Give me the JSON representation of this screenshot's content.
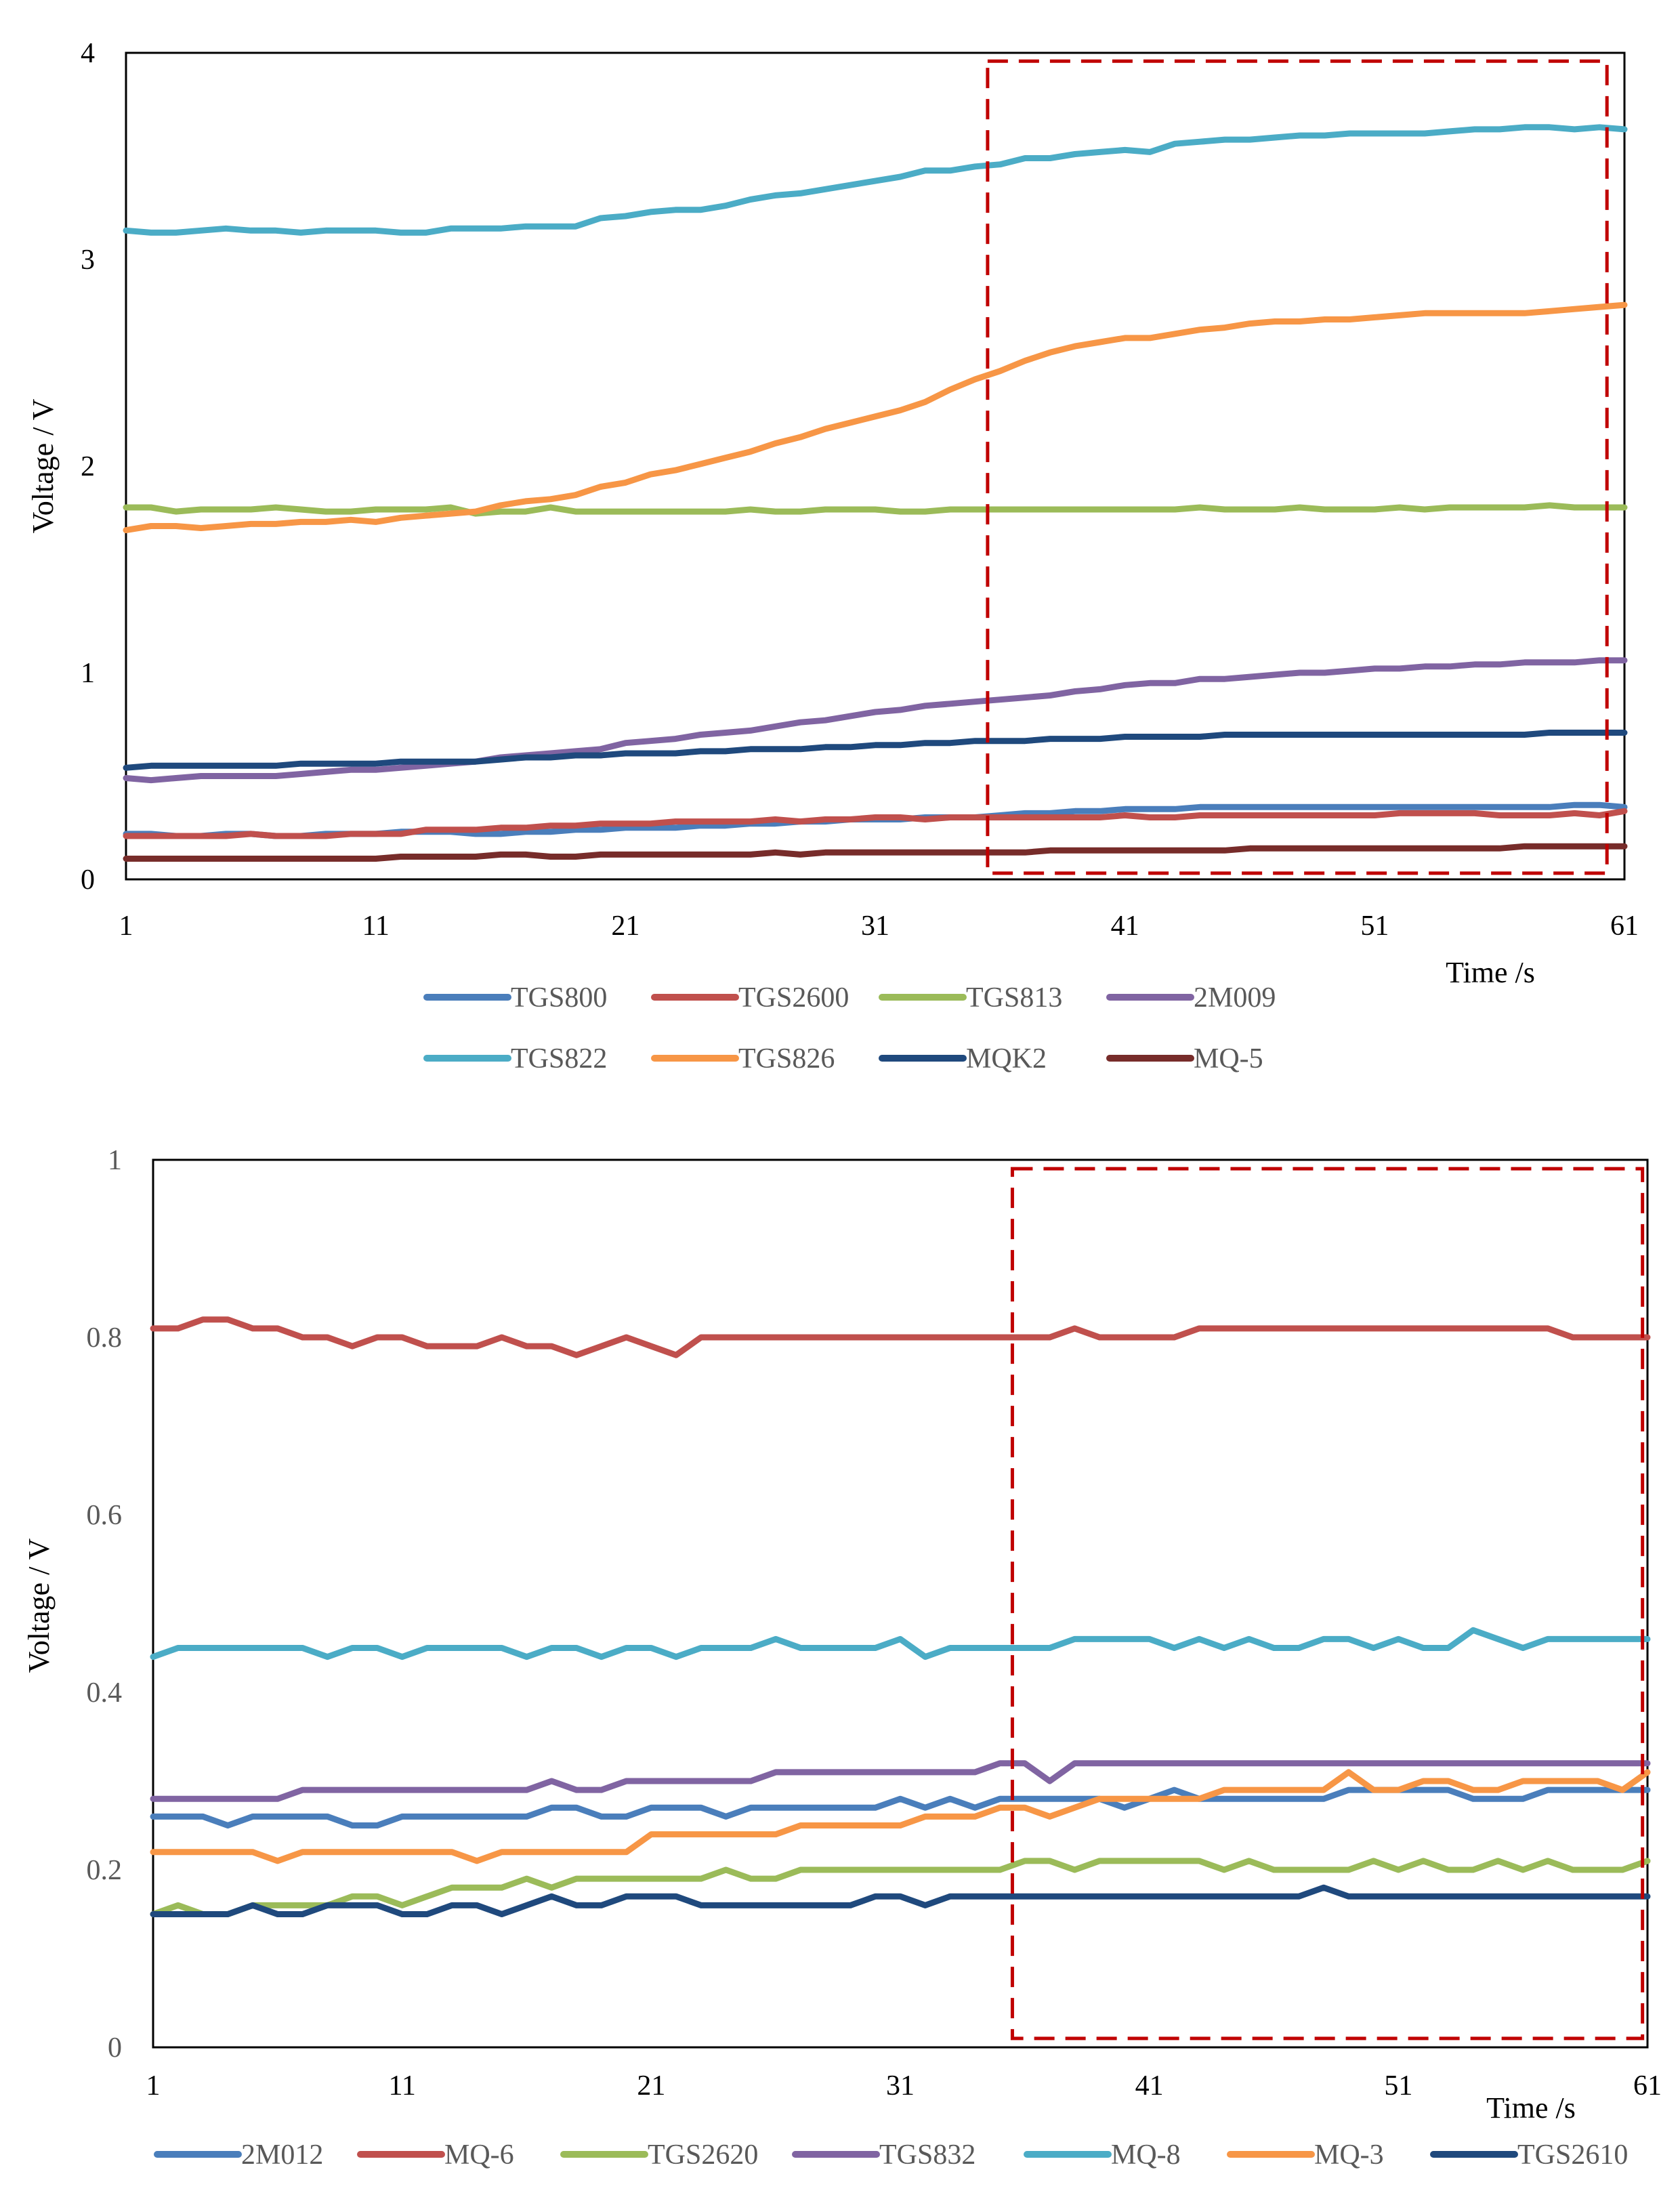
{
  "chart_data": [
    {
      "type": "line",
      "id": "chart-top",
      "title": "",
      "xlabel": "Time /s",
      "ylabel": "Voltage / V",
      "xlim": [
        1,
        61
      ],
      "ylim": [
        0,
        4
      ],
      "xticks": [
        1,
        11,
        21,
        31,
        41,
        51,
        61
      ],
      "xtick_labels": [
        "1",
        "11",
        "21",
        "31",
        "41",
        "51",
        "61"
      ],
      "yticks": [
        0,
        1,
        2,
        3,
        4
      ],
      "ytick_labels": [
        "0",
        "1",
        "2",
        "3",
        "4"
      ],
      "grid": false,
      "legend_position": "bottom",
      "legend_columns": 4,
      "highlight_region": {
        "x": [
          35.5,
          60.3
        ],
        "y": [
          0.03,
          3.96
        ],
        "color": "#c00000",
        "style": "dashed"
      },
      "series": [
        {
          "name": "TGS800",
          "color": "#4a7ebb",
          "values": [
            0.22,
            0.22,
            0.21,
            0.21,
            0.22,
            0.22,
            0.21,
            0.21,
            0.22,
            0.22,
            0.22,
            0.23,
            0.23,
            0.23,
            0.22,
            0.22,
            0.23,
            0.23,
            0.24,
            0.24,
            0.25,
            0.25,
            0.25,
            0.26,
            0.26,
            0.27,
            0.27,
            0.28,
            0.28,
            0.29,
            0.29,
            0.29,
            0.3,
            0.3,
            0.3,
            0.31,
            0.32,
            0.32,
            0.33,
            0.33,
            0.34,
            0.34,
            0.34,
            0.35,
            0.35,
            0.35,
            0.35,
            0.35,
            0.35,
            0.35,
            0.35,
            0.35,
            0.35,
            0.35,
            0.35,
            0.35,
            0.35,
            0.35,
            0.36,
            0.36,
            0.35
          ]
        },
        {
          "name": "TGS2600",
          "color": "#c0504d",
          "values": [
            0.21,
            0.21,
            0.21,
            0.21,
            0.21,
            0.22,
            0.21,
            0.21,
            0.21,
            0.22,
            0.22,
            0.22,
            0.24,
            0.24,
            0.24,
            0.25,
            0.25,
            0.26,
            0.26,
            0.27,
            0.27,
            0.27,
            0.28,
            0.28,
            0.28,
            0.28,
            0.29,
            0.28,
            0.29,
            0.29,
            0.3,
            0.3,
            0.29,
            0.3,
            0.3,
            0.3,
            0.3,
            0.3,
            0.3,
            0.3,
            0.31,
            0.3,
            0.3,
            0.31,
            0.31,
            0.31,
            0.31,
            0.31,
            0.31,
            0.31,
            0.31,
            0.32,
            0.32,
            0.32,
            0.32,
            0.31,
            0.31,
            0.31,
            0.32,
            0.31,
            0.33
          ]
        },
        {
          "name": "TGS813",
          "color": "#9bbb59",
          "values": [
            1.8,
            1.8,
            1.78,
            1.79,
            1.79,
            1.79,
            1.8,
            1.79,
            1.78,
            1.78,
            1.79,
            1.79,
            1.79,
            1.8,
            1.77,
            1.78,
            1.78,
            1.8,
            1.78,
            1.78,
            1.78,
            1.78,
            1.78,
            1.78,
            1.78,
            1.79,
            1.78,
            1.78,
            1.79,
            1.79,
            1.79,
            1.78,
            1.78,
            1.79,
            1.79,
            1.79,
            1.79,
            1.79,
            1.79,
            1.79,
            1.79,
            1.79,
            1.79,
            1.8,
            1.79,
            1.79,
            1.79,
            1.8,
            1.79,
            1.79,
            1.79,
            1.8,
            1.79,
            1.8,
            1.8,
            1.8,
            1.8,
            1.81,
            1.8,
            1.8,
            1.8
          ]
        },
        {
          "name": "2M009",
          "color": "#8064a2",
          "values": [
            0.49,
            0.48,
            0.49,
            0.5,
            0.5,
            0.5,
            0.5,
            0.51,
            0.52,
            0.53,
            0.53,
            0.54,
            0.55,
            0.56,
            0.57,
            0.59,
            0.6,
            0.61,
            0.62,
            0.63,
            0.66,
            0.67,
            0.68,
            0.7,
            0.71,
            0.72,
            0.74,
            0.76,
            0.77,
            0.79,
            0.81,
            0.82,
            0.84,
            0.85,
            0.86,
            0.87,
            0.88,
            0.89,
            0.91,
            0.92,
            0.94,
            0.95,
            0.95,
            0.97,
            0.97,
            0.98,
            0.99,
            1.0,
            1.0,
            1.01,
            1.02,
            1.02,
            1.03,
            1.03,
            1.04,
            1.04,
            1.05,
            1.05,
            1.05,
            1.06,
            1.06
          ]
        },
        {
          "name": "TGS822",
          "color": "#4bacc6",
          "values": [
            3.14,
            3.13,
            3.13,
            3.14,
            3.15,
            3.14,
            3.14,
            3.13,
            3.14,
            3.14,
            3.14,
            3.13,
            3.13,
            3.15,
            3.15,
            3.15,
            3.16,
            3.16,
            3.16,
            3.2,
            3.21,
            3.23,
            3.24,
            3.24,
            3.26,
            3.29,
            3.31,
            3.32,
            3.34,
            3.36,
            3.38,
            3.4,
            3.43,
            3.43,
            3.45,
            3.46,
            3.49,
            3.49,
            3.51,
            3.52,
            3.53,
            3.52,
            3.56,
            3.57,
            3.58,
            3.58,
            3.59,
            3.6,
            3.6,
            3.61,
            3.61,
            3.61,
            3.61,
            3.62,
            3.63,
            3.63,
            3.64,
            3.64,
            3.63,
            3.64,
            3.63
          ]
        },
        {
          "name": "TGS826",
          "color": "#f79646",
          "values": [
            1.69,
            1.71,
            1.71,
            1.7,
            1.71,
            1.72,
            1.72,
            1.73,
            1.73,
            1.74,
            1.73,
            1.75,
            1.76,
            1.77,
            1.78,
            1.81,
            1.83,
            1.84,
            1.86,
            1.9,
            1.92,
            1.96,
            1.98,
            2.01,
            2.04,
            2.07,
            2.11,
            2.14,
            2.18,
            2.21,
            2.24,
            2.27,
            2.31,
            2.37,
            2.42,
            2.46,
            2.51,
            2.55,
            2.58,
            2.6,
            2.62,
            2.62,
            2.64,
            2.66,
            2.67,
            2.69,
            2.7,
            2.7,
            2.71,
            2.71,
            2.72,
            2.73,
            2.74,
            2.74,
            2.74,
            2.74,
            2.74,
            2.75,
            2.76,
            2.77,
            2.78
          ]
        },
        {
          "name": "MQK2",
          "color": "#1f497d",
          "values": [
            0.54,
            0.55,
            0.55,
            0.55,
            0.55,
            0.55,
            0.55,
            0.56,
            0.56,
            0.56,
            0.56,
            0.57,
            0.57,
            0.57,
            0.57,
            0.58,
            0.59,
            0.59,
            0.6,
            0.6,
            0.61,
            0.61,
            0.61,
            0.62,
            0.62,
            0.63,
            0.63,
            0.63,
            0.64,
            0.64,
            0.65,
            0.65,
            0.66,
            0.66,
            0.67,
            0.67,
            0.67,
            0.68,
            0.68,
            0.68,
            0.69,
            0.69,
            0.69,
            0.69,
            0.7,
            0.7,
            0.7,
            0.7,
            0.7,
            0.7,
            0.7,
            0.7,
            0.7,
            0.7,
            0.7,
            0.7,
            0.7,
            0.71,
            0.71,
            0.71,
            0.71
          ]
        },
        {
          "name": "MQ-5",
          "color": "#772c2a",
          "values": [
            0.1,
            0.1,
            0.1,
            0.1,
            0.1,
            0.1,
            0.1,
            0.1,
            0.1,
            0.1,
            0.1,
            0.11,
            0.11,
            0.11,
            0.11,
            0.12,
            0.12,
            0.11,
            0.11,
            0.12,
            0.12,
            0.12,
            0.12,
            0.12,
            0.12,
            0.12,
            0.13,
            0.12,
            0.13,
            0.13,
            0.13,
            0.13,
            0.13,
            0.13,
            0.13,
            0.13,
            0.13,
            0.14,
            0.14,
            0.14,
            0.14,
            0.14,
            0.14,
            0.14,
            0.14,
            0.15,
            0.15,
            0.15,
            0.15,
            0.15,
            0.15,
            0.15,
            0.15,
            0.15,
            0.15,
            0.15,
            0.16,
            0.16,
            0.16,
            0.16,
            0.16
          ]
        }
      ]
    },
    {
      "type": "line",
      "id": "chart-bottom",
      "title": "",
      "xlabel": "Time /s",
      "ylabel": "Voltage / V",
      "xlim": [
        1,
        61
      ],
      "ylim": [
        0,
        1
      ],
      "xticks": [
        1,
        11,
        21,
        31,
        41,
        51,
        61
      ],
      "xtick_labels": [
        "1",
        "11",
        "21",
        "31",
        "41",
        "51",
        "61"
      ],
      "yticks": [
        0,
        0.2,
        0.4,
        0.6,
        0.8,
        1
      ],
      "ytick_labels": [
        "0",
        "0.2",
        "0.4",
        "0.6",
        "0.8",
        "1"
      ],
      "grid": false,
      "legend_position": "bottom",
      "legend_columns": 7,
      "highlight_region": {
        "x": [
          35.5,
          60.8
        ],
        "y": [
          0.01,
          0.99
        ],
        "color": "#c00000",
        "style": "dashed"
      },
      "series": [
        {
          "name": "2M012",
          "color": "#4a7ebb",
          "values": [
            0.26,
            0.26,
            0.26,
            0.25,
            0.26,
            0.26,
            0.26,
            0.26,
            0.25,
            0.25,
            0.26,
            0.26,
            0.26,
            0.26,
            0.26,
            0.26,
            0.27,
            0.27,
            0.26,
            0.26,
            0.27,
            0.27,
            0.27,
            0.26,
            0.27,
            0.27,
            0.27,
            0.27,
            0.27,
            0.27,
            0.28,
            0.27,
            0.28,
            0.27,
            0.28,
            0.28,
            0.28,
            0.28,
            0.28,
            0.27,
            0.28,
            0.29,
            0.28,
            0.28,
            0.28,
            0.28,
            0.28,
            0.28,
            0.29,
            0.29,
            0.29,
            0.29,
            0.29,
            0.28,
            0.28,
            0.28,
            0.29,
            0.29,
            0.29,
            0.29,
            0.29
          ]
        },
        {
          "name": "MQ-6",
          "color": "#c0504d",
          "values": [
            0.81,
            0.81,
            0.82,
            0.82,
            0.81,
            0.81,
            0.8,
            0.8,
            0.79,
            0.8,
            0.8,
            0.79,
            0.79,
            0.79,
            0.8,
            0.79,
            0.79,
            0.78,
            0.79,
            0.8,
            0.79,
            0.78,
            0.8,
            0.8,
            0.8,
            0.8,
            0.8,
            0.8,
            0.8,
            0.8,
            0.8,
            0.8,
            0.8,
            0.8,
            0.8,
            0.8,
            0.8,
            0.81,
            0.8,
            0.8,
            0.8,
            0.8,
            0.81,
            0.81,
            0.81,
            0.81,
            0.81,
            0.81,
            0.81,
            0.81,
            0.81,
            0.81,
            0.81,
            0.81,
            0.81,
            0.81,
            0.81,
            0.8,
            0.8,
            0.8,
            0.8
          ]
        },
        {
          "name": "TGS2620",
          "color": "#9bbb59",
          "values": [
            0.15,
            0.16,
            0.15,
            0.15,
            0.16,
            0.16,
            0.16,
            0.16,
            0.17,
            0.17,
            0.16,
            0.17,
            0.18,
            0.18,
            0.18,
            0.19,
            0.18,
            0.19,
            0.19,
            0.19,
            0.19,
            0.19,
            0.19,
            0.2,
            0.19,
            0.19,
            0.2,
            0.2,
            0.2,
            0.2,
            0.2,
            0.2,
            0.2,
            0.2,
            0.2,
            0.21,
            0.21,
            0.2,
            0.21,
            0.21,
            0.21,
            0.21,
            0.21,
            0.2,
            0.21,
            0.2,
            0.2,
            0.2,
            0.2,
            0.21,
            0.2,
            0.21,
            0.2,
            0.2,
            0.21,
            0.2,
            0.21,
            0.2,
            0.2,
            0.2,
            0.21
          ]
        },
        {
          "name": "TGS832",
          "color": "#8064a2",
          "values": [
            0.28,
            0.28,
            0.28,
            0.28,
            0.28,
            0.28,
            0.29,
            0.29,
            0.29,
            0.29,
            0.29,
            0.29,
            0.29,
            0.29,
            0.29,
            0.29,
            0.3,
            0.29,
            0.29,
            0.3,
            0.3,
            0.3,
            0.3,
            0.3,
            0.3,
            0.31,
            0.31,
            0.31,
            0.31,
            0.31,
            0.31,
            0.31,
            0.31,
            0.31,
            0.32,
            0.32,
            0.3,
            0.32,
            0.32,
            0.32,
            0.32,
            0.32,
            0.32,
            0.32,
            0.32,
            0.32,
            0.32,
            0.32,
            0.32,
            0.32,
            0.32,
            0.32,
            0.32,
            0.32,
            0.32,
            0.32,
            0.32,
            0.32,
            0.32,
            0.32,
            0.32
          ]
        },
        {
          "name": "MQ-8",
          "color": "#4bacc6",
          "values": [
            0.44,
            0.45,
            0.45,
            0.45,
            0.45,
            0.45,
            0.45,
            0.44,
            0.45,
            0.45,
            0.44,
            0.45,
            0.45,
            0.45,
            0.45,
            0.44,
            0.45,
            0.45,
            0.44,
            0.45,
            0.45,
            0.44,
            0.45,
            0.45,
            0.45,
            0.46,
            0.45,
            0.45,
            0.45,
            0.45,
            0.46,
            0.44,
            0.45,
            0.45,
            0.45,
            0.45,
            0.45,
            0.46,
            0.46,
            0.46,
            0.46,
            0.45,
            0.46,
            0.45,
            0.46,
            0.45,
            0.45,
            0.46,
            0.46,
            0.45,
            0.46,
            0.45,
            0.45,
            0.47,
            0.46,
            0.45,
            0.46,
            0.46,
            0.46,
            0.46,
            0.46
          ]
        },
        {
          "name": "MQ-3",
          "color": "#f79646",
          "values": [
            0.22,
            0.22,
            0.22,
            0.22,
            0.22,
            0.21,
            0.22,
            0.22,
            0.22,
            0.22,
            0.22,
            0.22,
            0.22,
            0.21,
            0.22,
            0.22,
            0.22,
            0.22,
            0.22,
            0.22,
            0.24,
            0.24,
            0.24,
            0.24,
            0.24,
            0.24,
            0.25,
            0.25,
            0.25,
            0.25,
            0.25,
            0.26,
            0.26,
            0.26,
            0.27,
            0.27,
            0.26,
            0.27,
            0.28,
            0.28,
            0.28,
            0.28,
            0.28,
            0.29,
            0.29,
            0.29,
            0.29,
            0.29,
            0.31,
            0.29,
            0.29,
            0.3,
            0.3,
            0.29,
            0.29,
            0.3,
            0.3,
            0.3,
            0.3,
            0.29,
            0.31
          ]
        },
        {
          "name": "TGS2610",
          "color": "#1f497d",
          "values": [
            0.15,
            0.15,
            0.15,
            0.15,
            0.16,
            0.15,
            0.15,
            0.16,
            0.16,
            0.16,
            0.15,
            0.15,
            0.16,
            0.16,
            0.15,
            0.16,
            0.17,
            0.16,
            0.16,
            0.17,
            0.17,
            0.17,
            0.16,
            0.16,
            0.16,
            0.16,
            0.16,
            0.16,
            0.16,
            0.17,
            0.17,
            0.16,
            0.17,
            0.17,
            0.17,
            0.17,
            0.17,
            0.17,
            0.17,
            0.17,
            0.17,
            0.17,
            0.17,
            0.17,
            0.17,
            0.17,
            0.17,
            0.18,
            0.17,
            0.17,
            0.17,
            0.17,
            0.17,
            0.17,
            0.17,
            0.17,
            0.17,
            0.17,
            0.17,
            0.17,
            0.17
          ]
        }
      ]
    }
  ]
}
